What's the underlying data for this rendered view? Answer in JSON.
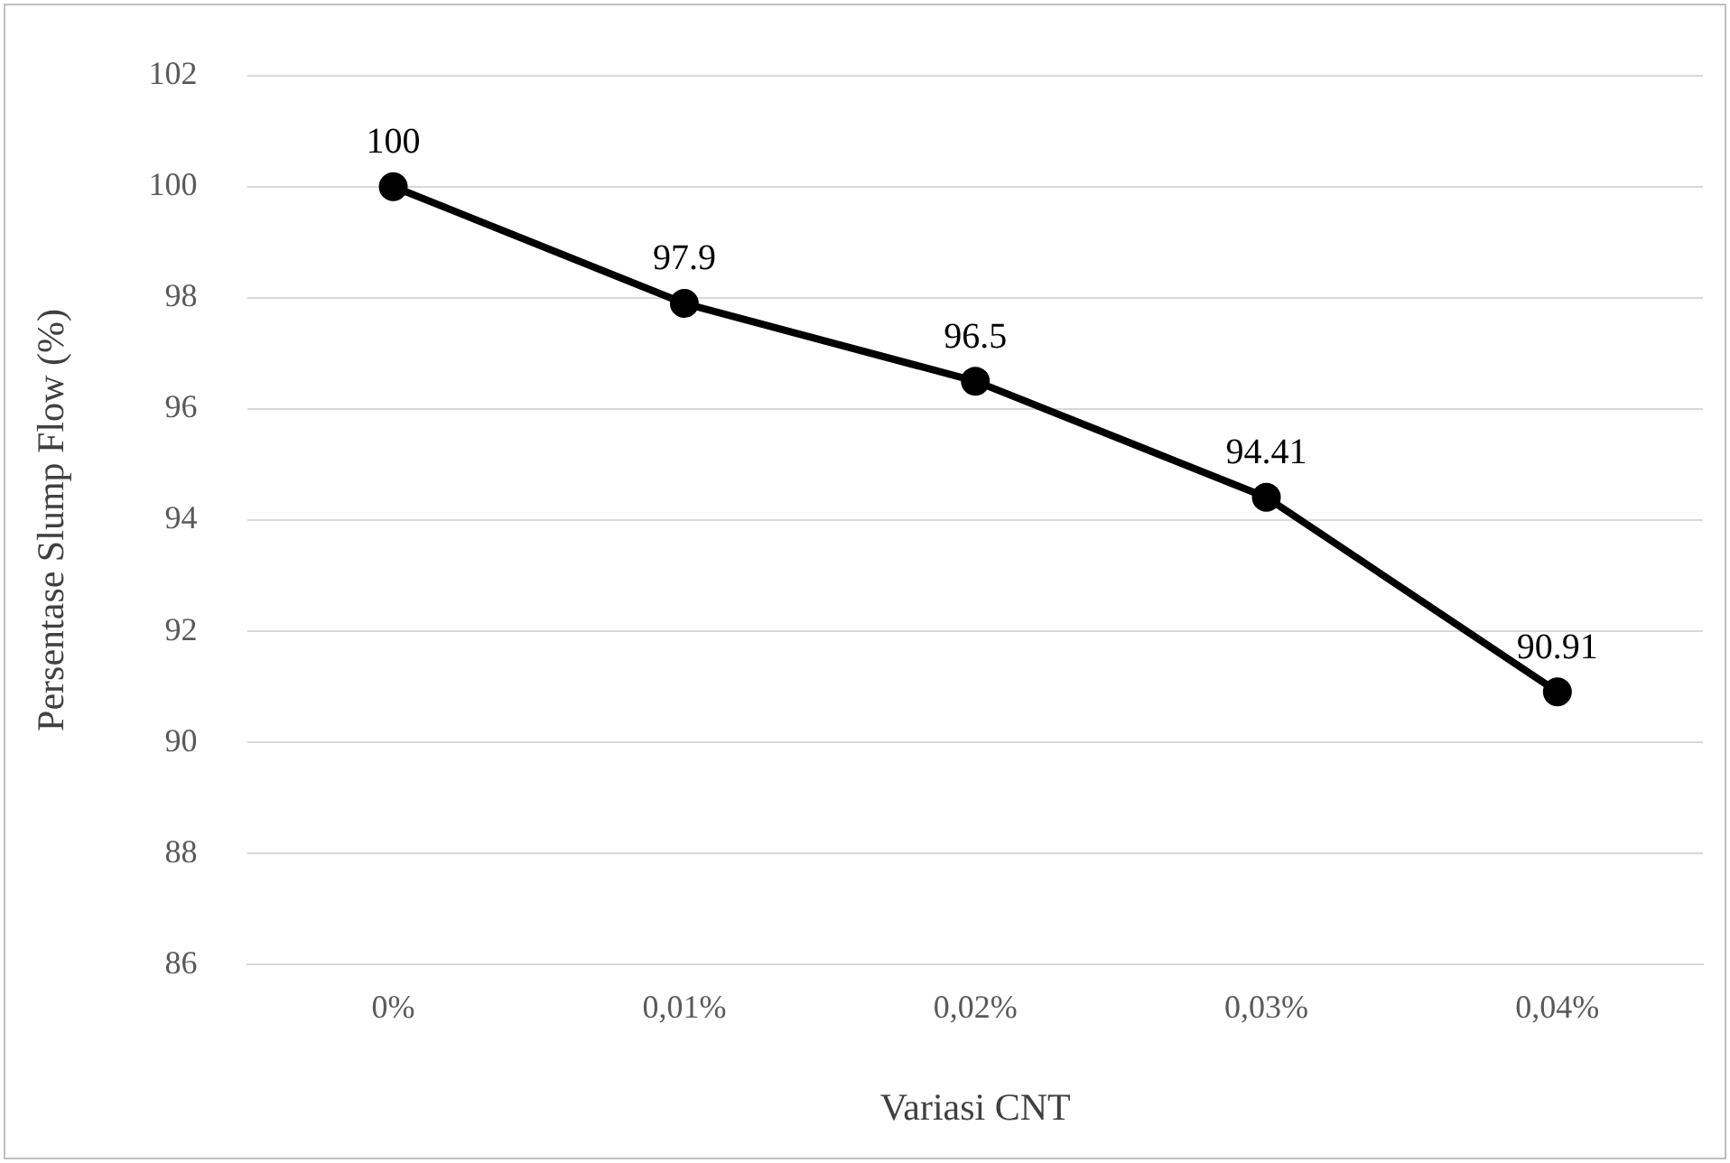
{
  "chart_data": {
    "type": "line",
    "xlabel": "Variasi CNT",
    "ylabel": "Persentase Slump Flow (%)",
    "categories": [
      "0%",
      "0,01%",
      "0,02%",
      "0,03%",
      "0,04%"
    ],
    "values": [
      100,
      97.9,
      96.5,
      94.41,
      90.91
    ],
    "color": "#000000",
    "ylim": [
      86,
      102
    ],
    "yticks": [
      86,
      88,
      90,
      92,
      94,
      96,
      98,
      100,
      102
    ],
    "grid": "y",
    "marker": "circle",
    "line_style": "solid",
    "data_labels": true,
    "legend": false
  }
}
